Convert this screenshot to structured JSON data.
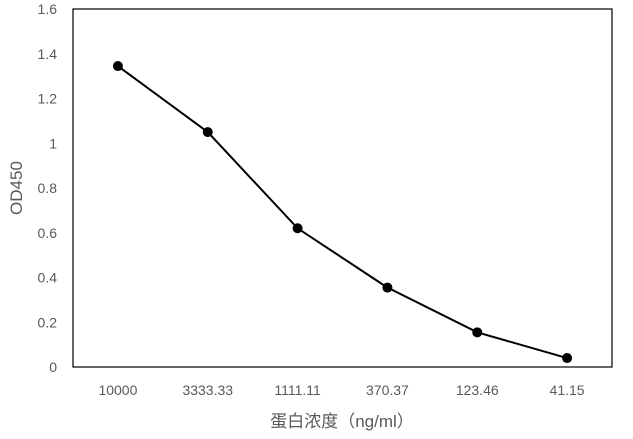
{
  "chart_data": {
    "type": "line",
    "title": "",
    "xlabel": "蛋白浓度（ng/ml）",
    "ylabel": "OD450",
    "categories": [
      "10000",
      "3333.33",
      "1111.11",
      "370.37",
      "123.46",
      "41.15"
    ],
    "series": [
      {
        "values": [
          1.345,
          1.05,
          0.62,
          0.355,
          0.155,
          0.04
        ]
      }
    ],
    "ylim": [
      0,
      1.6
    ],
    "yticks": [
      "0",
      "0.2",
      "0.4",
      "0.6",
      "0.8",
      "1",
      "1.2",
      "1.4",
      "1.6"
    ],
    "grid": false,
    "legend": "none",
    "colors": {
      "line": "#000000",
      "marker": "#000000",
      "axis": "#000000",
      "text": "#595959"
    }
  }
}
